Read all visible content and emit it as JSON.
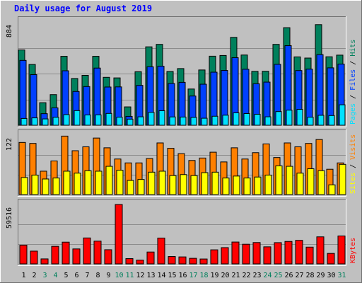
{
  "chart_data": {
    "title": "Daily usage for August 2019",
    "type": "bar",
    "days": [
      "1",
      "2",
      "3",
      "4",
      "5",
      "6",
      "7",
      "8",
      "9",
      "10",
      "11",
      "12",
      "13",
      "14",
      "15",
      "16",
      "17",
      "18",
      "19",
      "20",
      "21",
      "22",
      "23",
      "24",
      "25",
      "26",
      "27",
      "28",
      "29",
      "30",
      "31"
    ],
    "weekend_days": [
      3,
      4,
      10,
      11,
      17,
      18,
      24,
      25,
      31
    ],
    "colors": {
      "title": "#0000ff",
      "hits": "#00805c",
      "files": "#0040ff",
      "pages": "#00e0ff",
      "visits": "#ff8000",
      "sites": "#ffff00",
      "kbytes": "#ff0000",
      "weekday_label": "#000000",
      "weekend_label": "#00805c",
      "plot_bg": "#c0c0c0"
    },
    "panels": [
      {
        "id": "hits",
        "max_label": "884",
        "ymax": 884,
        "legend": [
          "Pages",
          "Files",
          "Hits"
        ],
        "series": [
          {
            "name": "Hits",
            "color": "#00805c",
            "values": [
              644,
              520,
              193,
              262,
              590,
              400,
              427,
              590,
              410,
              405,
              157,
              458,
              671,
              692,
              460,
              485,
              310,
              473,
              591,
              597,
              752,
              601,
              461,
              462,
              692,
              835,
              585,
              575,
              861,
              586,
              600
            ]
          },
          {
            "name": "Files",
            "color": "#0040ff",
            "values": [
              555,
              433,
              99,
              149,
              466,
              289,
              331,
              489,
              327,
              328,
              76,
              341,
              500,
              505,
              357,
              367,
              250,
              351,
              454,
              469,
              578,
              479,
              355,
              369,
              521,
              681,
              468,
              480,
              604,
              491,
              523
            ]
          },
          {
            "name": "Pages",
            "color": "#00e0ff",
            "values": [
              58,
              63,
              54,
              68,
              91,
              125,
              88,
              89,
              101,
              69,
              52,
              72,
              110,
              124,
              71,
              70,
              67,
              60,
              77,
              86,
              106,
              100,
              94,
              72,
              117,
              129,
              136,
              69,
              85,
              83,
              175
            ]
          }
        ]
      },
      {
        "id": "visits",
        "max_label": "122",
        "ymax": 122,
        "legend": [
          "Sites",
          "Visits"
        ],
        "series": [
          {
            "name": "Visits",
            "color": "#ff8000",
            "values": [
              107,
              105,
              48,
              69,
              120,
              90,
              98,
              116,
              96,
              73,
              65,
              65,
              74,
              106,
              95,
              84,
              70,
              75,
              87,
              67,
              96,
              73,
              86,
              104,
              76,
              106,
              98,
              105,
              113,
              52,
              65
            ]
          },
          {
            "name": "Sites",
            "color": "#ffff00",
            "values": [
              35,
              40,
              32,
              34,
              48,
              44,
              49,
              48,
              58,
              50,
              29,
              31,
              46,
              48,
              39,
              41,
              39,
              45,
              46,
              34,
              38,
              34,
              36,
              40,
              59,
              58,
              44,
              53,
              49,
              20,
              62
            ]
          }
        ]
      },
      {
        "id": "kbytes",
        "max_label": "59516",
        "ymax": 59516,
        "legend": [
          "KBytes"
        ],
        "series": [
          {
            "name": "KBytes",
            "color": "#ff0000",
            "values": [
              18700,
              12800,
              5000,
              17600,
              21800,
              15000,
              26000,
              22800,
              14200,
              59500,
              5300,
              3800,
              11900,
              25900,
              7400,
              7000,
              5600,
              4900,
              14100,
              16300,
              21900,
              19700,
              21400,
              17100,
              21300,
              22500,
              23600,
              16800,
              27100,
              10500,
              28000
            ]
          }
        ]
      }
    ]
  }
}
